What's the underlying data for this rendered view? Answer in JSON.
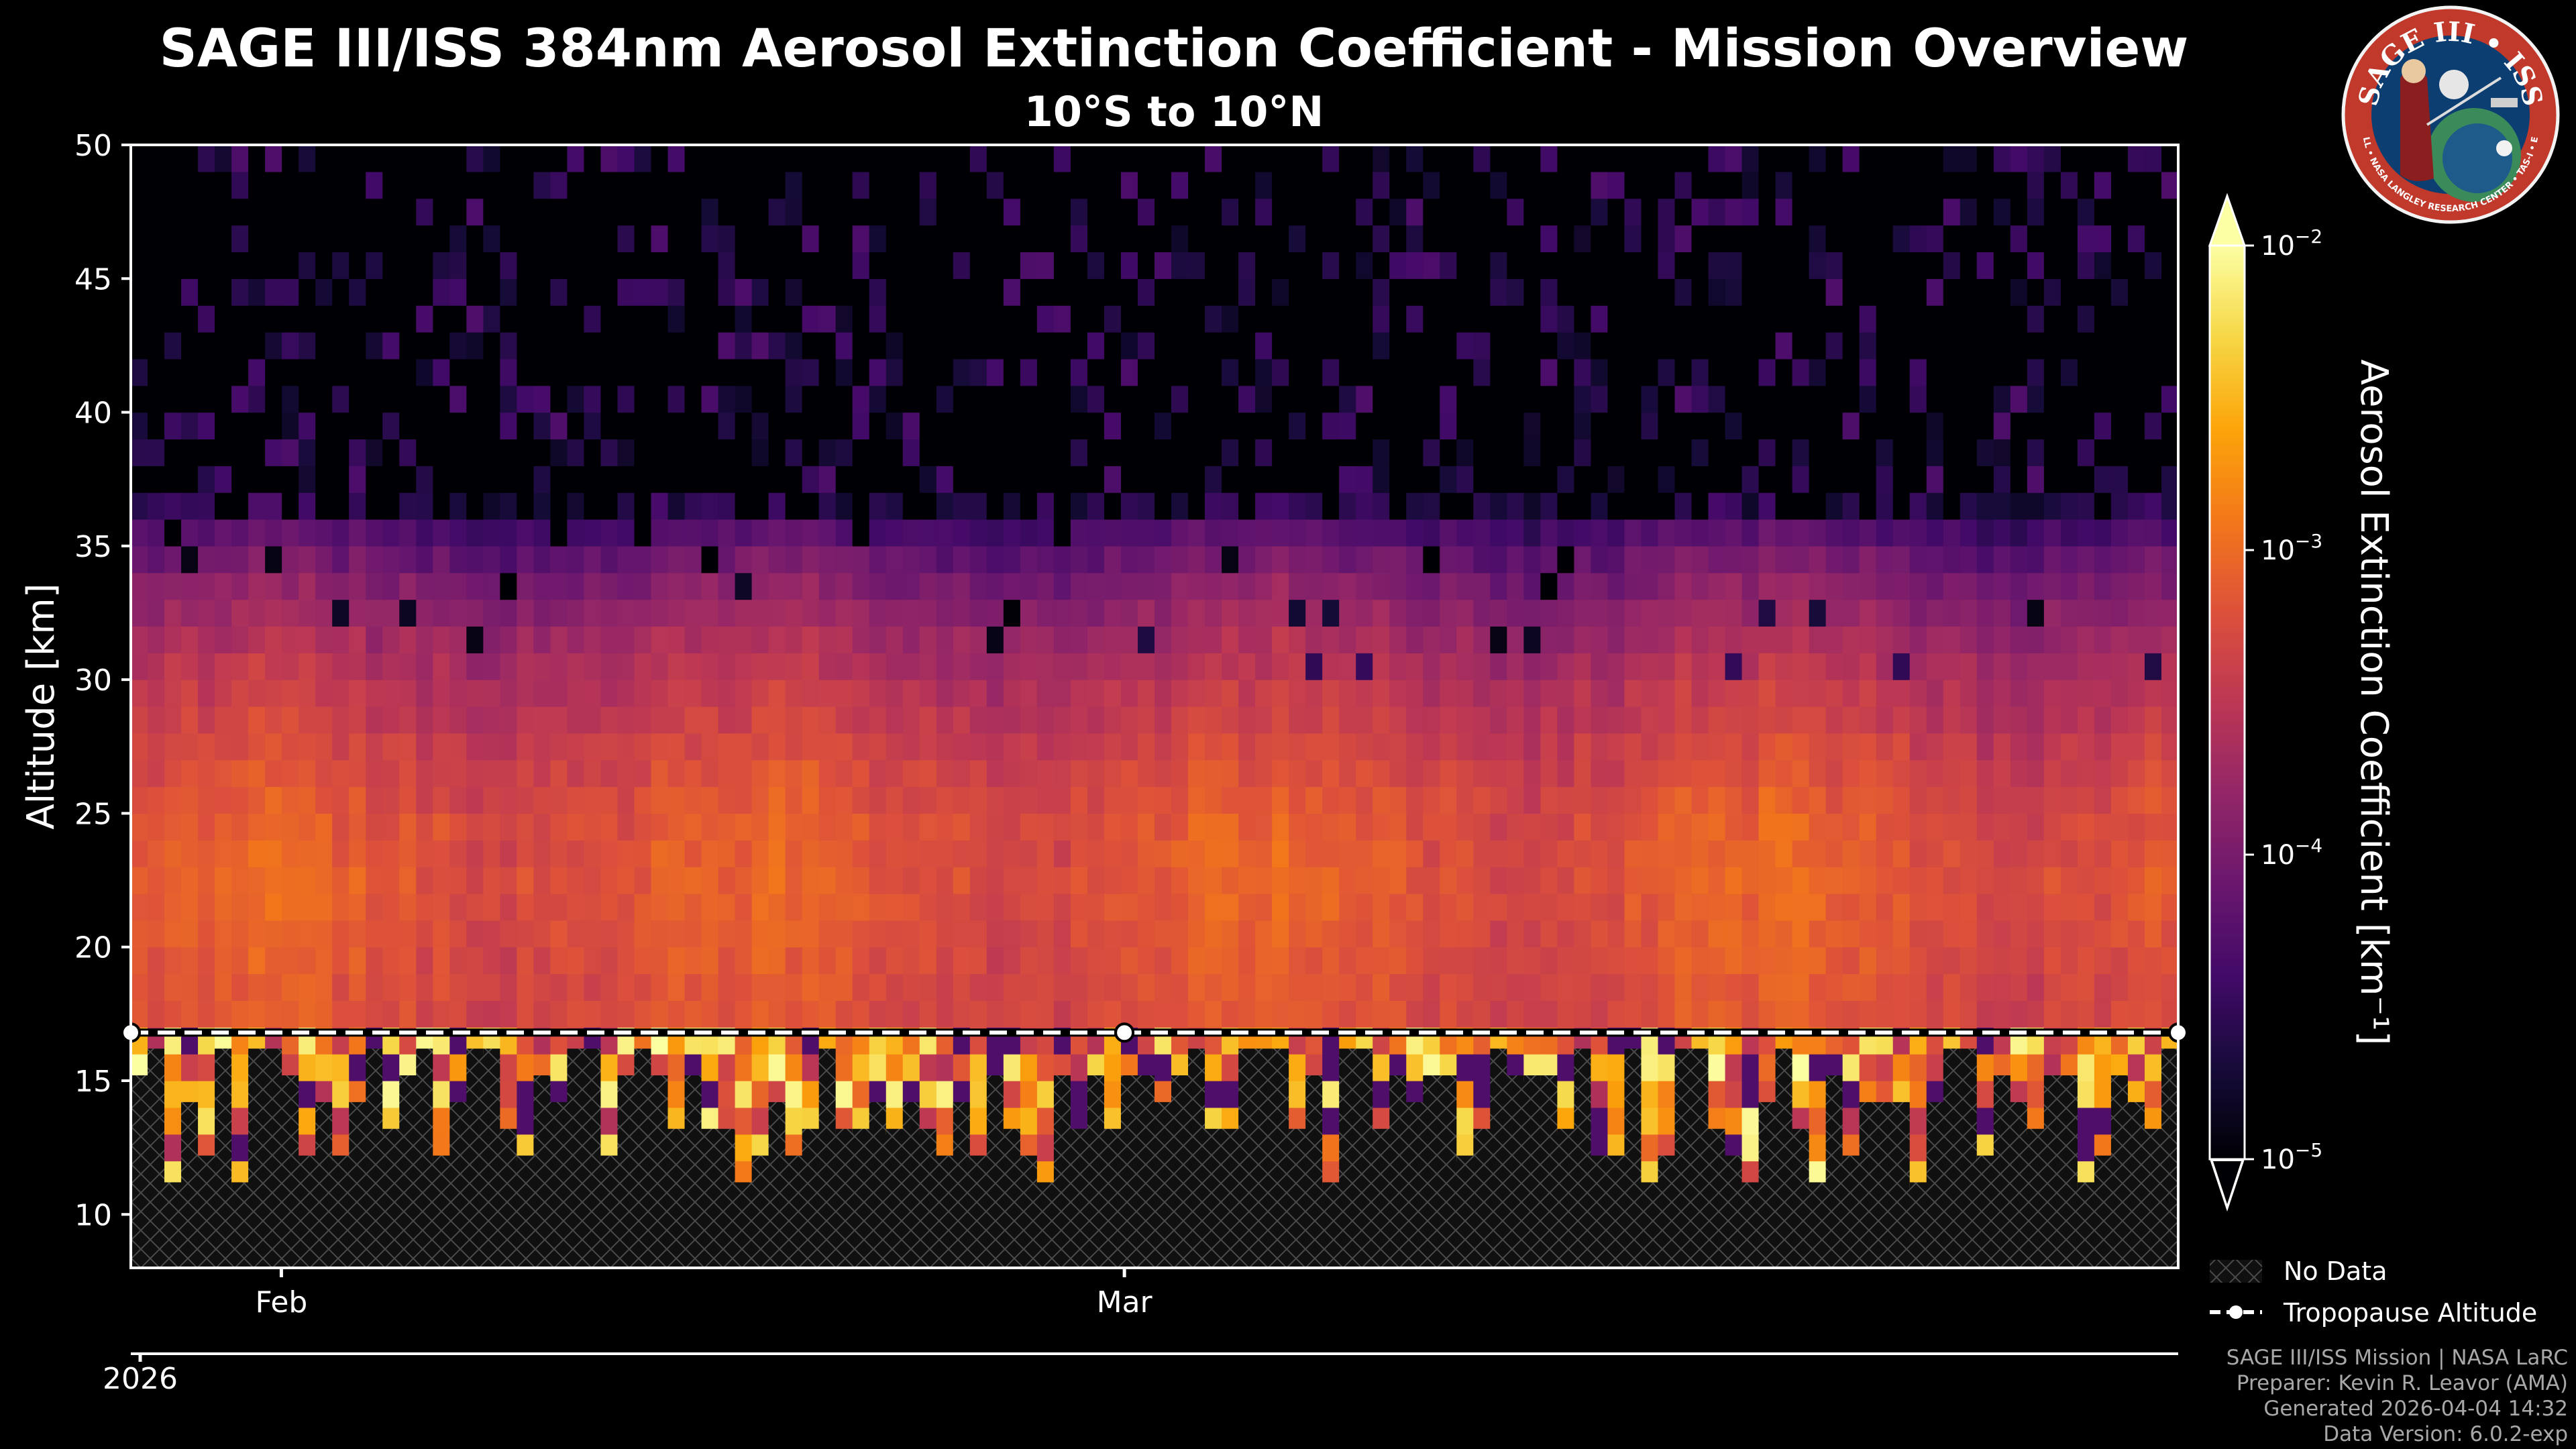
{
  "title": "SAGE III/ISS 384nm Aerosol Extinction Coefficient - Mission Overview",
  "subtitle": "10°S to 10°N",
  "chart_data": {
    "type": "heatmap",
    "title": "SAGE III/ISS 384nm Aerosol Extinction Coefficient - Mission Overview",
    "subtitle": "10°S to 10°N",
    "ylabel": "Altitude [km]",
    "ylim": [
      8,
      50
    ],
    "yticks": [
      "10",
      "15",
      "20",
      "25",
      "30",
      "35",
      "40",
      "45",
      "50"
    ],
    "xlim": [
      "2026-01-27",
      "2026-04-05"
    ],
    "xticks_major": [
      {
        "date": "2026-02-01",
        "label": "Feb"
      },
      {
        "date": "2026-03-01",
        "label": "Mar"
      }
    ],
    "xticks_year": [
      {
        "date": "2026-01-27",
        "label": "2026"
      }
    ],
    "colorbar": {
      "label": "Aerosol Extinction Coefficient [km⁻¹]",
      "scale": "log",
      "range": [
        1e-05,
        0.01
      ],
      "ticks": [
        {
          "value": 1e-05,
          "base": "10",
          "exp": "−5"
        },
        {
          "value": 0.0001,
          "base": "10",
          "exp": "−4"
        },
        {
          "value": 0.001,
          "base": "10",
          "exp": "−3"
        },
        {
          "value": 0.01,
          "base": "10",
          "exp": "−2"
        }
      ],
      "colormap": "inferno",
      "extend": "both"
    },
    "tropopause": {
      "name": "Tropopause Altitude",
      "altitude_km": 16.8,
      "marker_dates": [
        "2026-01-27",
        "2026-03-01",
        "2026-04-05"
      ]
    },
    "legend": [
      {
        "name": "No Data",
        "style": "hatch"
      },
      {
        "name": "Tropopause Altitude",
        "style": "dashed-line-with-marker"
      }
    ],
    "legend_position": "bottom-right, outside plot",
    "profile_summary": {
      "altitude_km": [
        12,
        14,
        16,
        18,
        20,
        22,
        25,
        28,
        30,
        32,
        34,
        36,
        38,
        40,
        45,
        50
      ],
      "log10_extinction": [
        -2.9,
        -3.0,
        -3.2,
        -3.25,
        -3.2,
        -3.15,
        -3.2,
        -3.4,
        -3.55,
        -3.75,
        -4.0,
        -4.4,
        -5.0,
        -5.1,
        -5.1,
        -5.15
      ]
    }
  },
  "footer": {
    "line1": "SAGE III/ISS Mission | NASA LaRC",
    "line2": "Preparer: Kevin R. Leavor (AMA)",
    "line3": "Generated 2026-04-04 14:32",
    "line4": "Data Version: 6.0.2-exp"
  },
  "logo": {
    "text_top": "SAGE III • ISS",
    "text_bottom": "BALL • NASA LANGLEY RESEARCH CENTER • TAS-I • ESA"
  },
  "colors": {
    "background": "#000000",
    "axis": "#ffffff",
    "footer_text": "#a8a8a8",
    "logo_ring": "#c0392b",
    "logo_fill": "#0c3e72"
  }
}
